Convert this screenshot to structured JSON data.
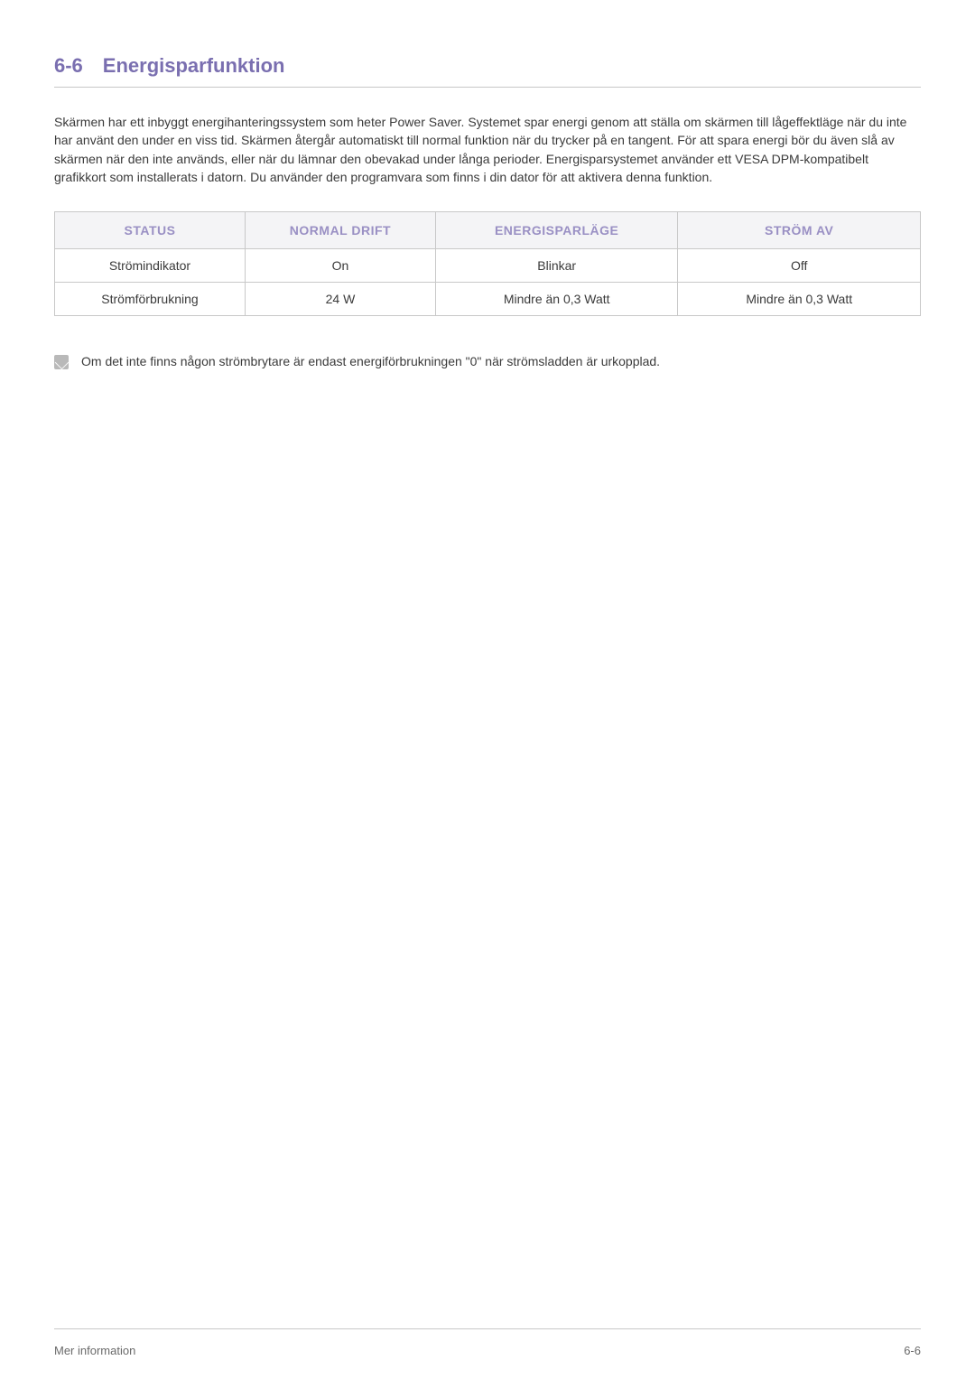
{
  "heading": {
    "number": "6-6",
    "title": "Energisparfunktion"
  },
  "paragraph": "Skärmen har ett inbyggt energihanteringssystem som heter Power Saver. Systemet spar energi genom att ställa om skärmen till lågeffektläge när du inte har använt den under en viss tid. Skärmen återgår automatiskt till normal funktion när du trycker på en tangent. För att spara energi bör du även slå av skärmen när den inte används, eller när du lämnar den obevakad under långa perioder. Energisparsystemet använder ett VESA DPM-kompatibelt grafikkort som installerats i datorn. Du använder den programvara som finns i din dator för att aktivera denna funktion.",
  "table": {
    "headers": [
      "STATUS",
      "NORMAL DRIFT",
      "ENERGISPARLÄGE",
      "STRÖM AV"
    ],
    "rows": [
      [
        "Strömindikator",
        "On",
        "Blinkar",
        "Off"
      ],
      [
        "Strömförbrukning",
        "24 W",
        "Mindre än 0,3 Watt",
        "Mindre än 0,3 Watt"
      ]
    ],
    "header_color": "#9a90c4",
    "header_bg": "#f4f4f6",
    "border_color": "#c8c8c8",
    "column_widths_pct": [
      22,
      22,
      28,
      28
    ]
  },
  "note": {
    "text": "Om det inte finns någon strömbrytare är endast energiförbrukningen \"0\" när strömsladden är urkopplad."
  },
  "footer": {
    "left": "Mer information",
    "right": "6-6"
  },
  "colors": {
    "accent": "#7a6fb0",
    "text": "#3a3a3a",
    "muted": "#6a6a6a",
    "divider": "#c8c8c8",
    "background": "#ffffff"
  },
  "typography": {
    "heading_fontsize_pt": 16,
    "body_fontsize_pt": 10.5,
    "footer_fontsize_pt": 10
  }
}
